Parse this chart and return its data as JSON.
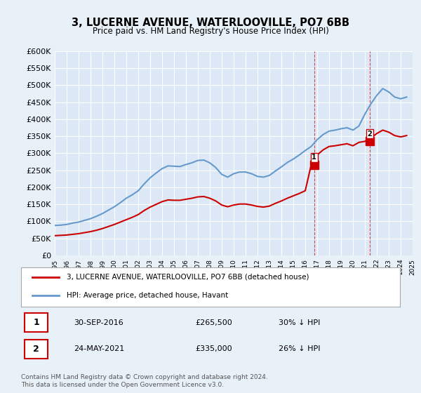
{
  "title": "3, LUCERNE AVENUE, WATERLOOVILLE, PO7 6BB",
  "subtitle": "Price paid vs. HM Land Registry's House Price Index (HPI)",
  "legend_property": "3, LUCERNE AVENUE, WATERLOOVILLE, PO7 6BB (detached house)",
  "legend_hpi": "HPI: Average price, detached house, Havant",
  "transaction1_label": "1",
  "transaction1_date": "30-SEP-2016",
  "transaction1_price": "£265,500",
  "transaction1_hpi": "30% ↓ HPI",
  "transaction2_label": "2",
  "transaction2_date": "24-MAY-2021",
  "transaction2_price": "£335,000",
  "transaction2_hpi": "26% ↓ HPI",
  "footer": "Contains HM Land Registry data © Crown copyright and database right 2024.\nThis data is licensed under the Open Government Licence v3.0.",
  "property_color": "#cc0000",
  "hpi_color": "#6699cc",
  "background_color": "#e8f0f8",
  "plot_bg": "#dce8f5",
  "ylim": [
    0,
    600000
  ],
  "yticks": [
    0,
    50000,
    100000,
    150000,
    200000,
    250000,
    300000,
    350000,
    400000,
    450000,
    500000,
    550000,
    600000
  ],
  "hpi_x": [
    1995.0,
    1995.5,
    1996.0,
    1996.5,
    1997.0,
    1997.5,
    1998.0,
    1998.5,
    1999.0,
    1999.5,
    2000.0,
    2000.5,
    2001.0,
    2001.5,
    2002.0,
    2002.5,
    2003.0,
    2003.5,
    2004.0,
    2004.5,
    2005.0,
    2005.5,
    2006.0,
    2006.5,
    2007.0,
    2007.5,
    2008.0,
    2008.5,
    2009.0,
    2009.5,
    2010.0,
    2010.5,
    2011.0,
    2011.5,
    2012.0,
    2012.5,
    2013.0,
    2013.5,
    2014.0,
    2014.5,
    2015.0,
    2015.5,
    2016.0,
    2016.5,
    2017.0,
    2017.5,
    2018.0,
    2018.5,
    2019.0,
    2019.5,
    2020.0,
    2020.5,
    2021.0,
    2021.5,
    2022.0,
    2022.5,
    2023.0,
    2023.5,
    2024.0,
    2024.5
  ],
  "hpi_y": [
    88000,
    89000,
    91000,
    95000,
    98000,
    103000,
    108000,
    115000,
    123000,
    133000,
    143000,
    155000,
    168000,
    178000,
    190000,
    210000,
    228000,
    242000,
    255000,
    263000,
    262000,
    261000,
    267000,
    272000,
    279000,
    280000,
    272000,
    258000,
    238000,
    230000,
    240000,
    245000,
    245000,
    240000,
    232000,
    230000,
    235000,
    248000,
    260000,
    273000,
    283000,
    295000,
    308000,
    320000,
    340000,
    355000,
    365000,
    368000,
    372000,
    375000,
    368000,
    380000,
    415000,
    445000,
    470000,
    490000,
    480000,
    465000,
    460000,
    465000
  ],
  "property_x": [
    1995.0,
    1995.5,
    1996.0,
    1996.5,
    1997.0,
    1997.5,
    1998.0,
    1998.5,
    1999.0,
    1999.5,
    2000.0,
    2000.5,
    2001.0,
    2001.5,
    2002.0,
    2002.5,
    2003.0,
    2003.5,
    2004.0,
    2004.5,
    2005.0,
    2005.5,
    2006.0,
    2006.5,
    2007.0,
    2007.5,
    2008.0,
    2008.5,
    2009.0,
    2009.5,
    2010.0,
    2010.5,
    2011.0,
    2011.5,
    2012.0,
    2012.5,
    2013.0,
    2013.5,
    2014.0,
    2014.5,
    2015.0,
    2015.5,
    2016.0,
    2016.5,
    2017.0,
    2017.5,
    2018.0,
    2018.5,
    2019.0,
    2019.5,
    2020.0,
    2020.5,
    2021.0,
    2021.5,
    2022.0,
    2022.5,
    2023.0,
    2023.5,
    2024.0,
    2024.5
  ],
  "property_y": [
    58000,
    59000,
    60000,
    62000,
    64000,
    67000,
    70000,
    74000,
    79000,
    85000,
    91000,
    98000,
    105000,
    112000,
    120000,
    132000,
    142000,
    150000,
    158000,
    163000,
    162000,
    162000,
    165000,
    168000,
    172000,
    173000,
    168000,
    160000,
    148000,
    143000,
    148000,
    151000,
    151000,
    148000,
    144000,
    142000,
    145000,
    153000,
    160000,
    168000,
    175000,
    182000,
    190000,
    265500,
    295000,
    310000,
    320000,
    322000,
    325000,
    328000,
    322000,
    332000,
    335000,
    345000,
    358000,
    368000,
    362000,
    352000,
    348000,
    352000
  ],
  "marker1_x": 2016.75,
  "marker1_y": 265500,
  "marker2_x": 2021.4,
  "marker2_y": 335000,
  "vline1_x": 2016.75,
  "vline2_x": 2021.4,
  "xmin": 1995,
  "xmax": 2025
}
